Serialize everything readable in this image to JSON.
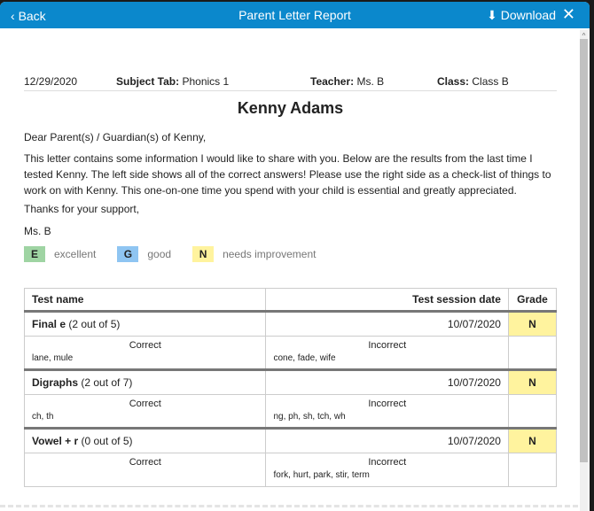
{
  "header": {
    "back": "Back",
    "title": "Parent Letter Report",
    "download": "Download"
  },
  "meta": {
    "date": "12/29/2020",
    "subject_label": "Subject Tab:",
    "subject": "Phonics 1",
    "teacher_label": "Teacher:",
    "teacher": "Ms. B",
    "class_label": "Class:",
    "class": "Class B"
  },
  "student": "Kenny Adams",
  "letter": {
    "greeting": "Dear Parent(s) / Guardian(s) of Kenny,",
    "body": "This letter contains some information I would like to share with you. Below are the results from the last time I tested Kenny. The left side shows all of the correct answers! Please use the right side as a check-list of things to work on with Kenny. This one-on-one time you spend with your child is essential and greatly appreciated.",
    "thanks": "Thanks for your support,",
    "signature": "Ms. B"
  },
  "legend": [
    {
      "code": "E",
      "label": "excellent",
      "color": "#9fd4a3"
    },
    {
      "code": "G",
      "label": "good",
      "color": "#8fc5f2"
    },
    {
      "code": "N",
      "label": "needs improvement",
      "color": "#fff39e"
    }
  ],
  "table": {
    "headers": [
      "Test name",
      "Test session date",
      "Grade"
    ],
    "correct_label": "Correct",
    "incorrect_label": "Incorrect",
    "rows": [
      {
        "name": "Final e",
        "score": "(2 out of 5)",
        "date": "10/07/2020",
        "grade": "N",
        "correct": "lane, mule",
        "incorrect": "cone, fade, wife"
      },
      {
        "name": "Digraphs",
        "score": "(2 out of 7)",
        "date": "10/07/2020",
        "grade": "N",
        "correct": "ch, th",
        "incorrect": "ng, ph, sh, tch, wh"
      },
      {
        "name": "Vowel + r",
        "score": "(0 out of 5)",
        "date": "10/07/2020",
        "grade": "N",
        "correct": "",
        "incorrect": "fork, hurt, park, stir, term"
      }
    ]
  }
}
